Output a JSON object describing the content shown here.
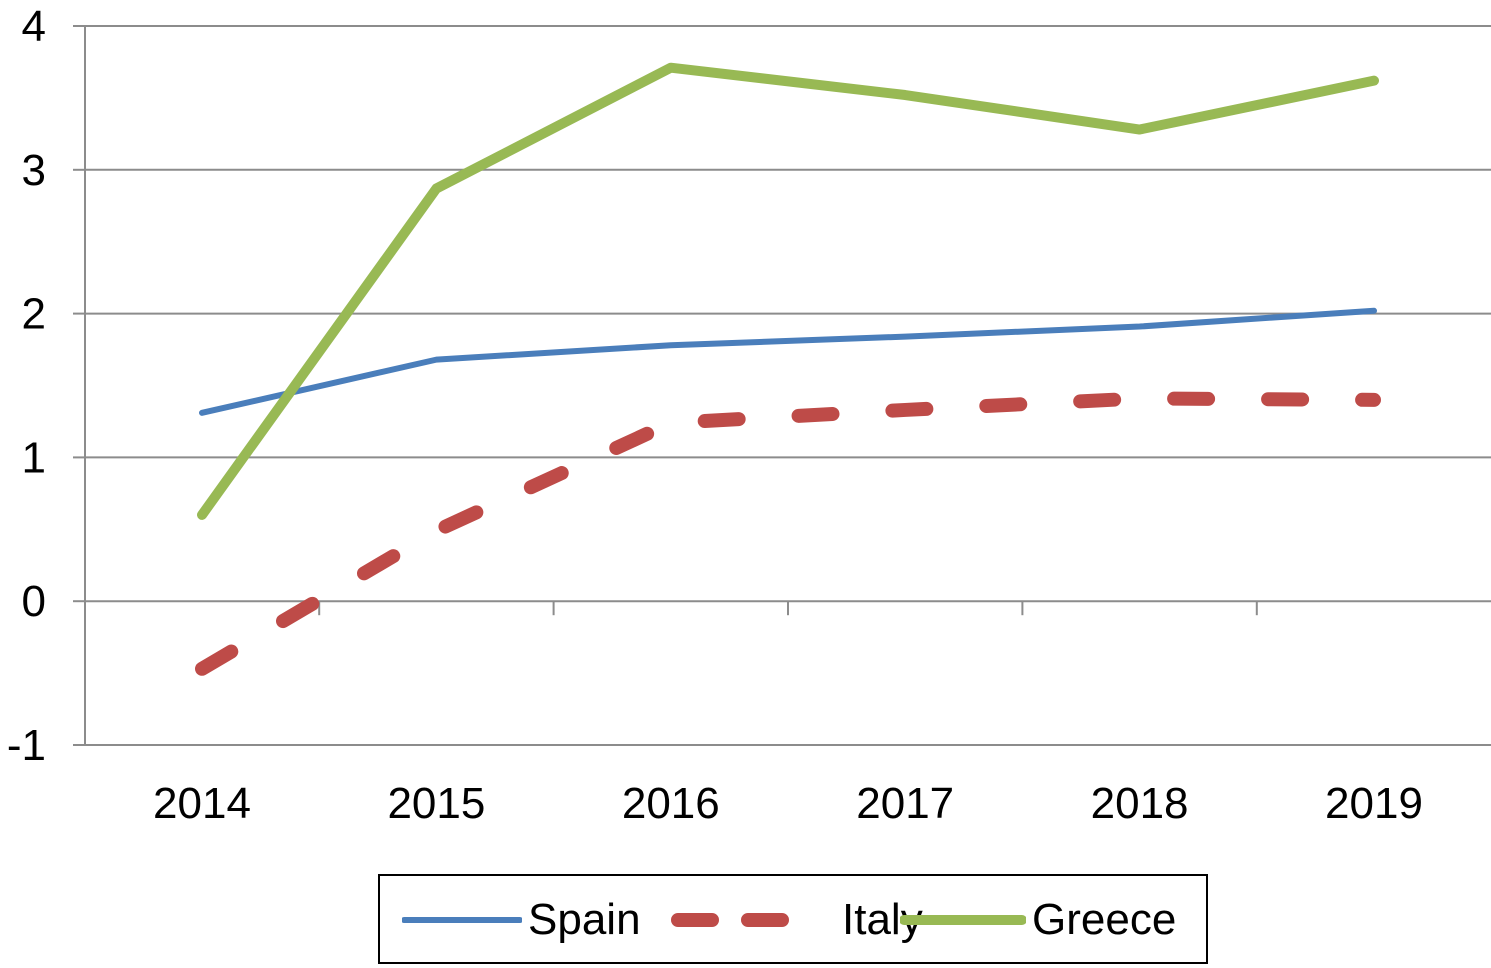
{
  "chart_data": {
    "type": "line",
    "title": "",
    "xlabel": "",
    "ylabel": "",
    "categories": [
      "2014",
      "2015",
      "2016",
      "2017",
      "2018",
      "2019"
    ],
    "ylim": [
      -1,
      4
    ],
    "yticks": [
      "-1",
      "0",
      "1",
      "2",
      "3",
      "4"
    ],
    "grid": true,
    "legend_position": "bottom",
    "series": [
      {
        "name": "Spain",
        "color": "#4a7ebb",
        "style": "solid",
        "values": [
          1.31,
          1.68,
          1.78,
          1.84,
          1.91,
          2.02
        ]
      },
      {
        "name": "Italy",
        "color": "#be4b48",
        "style": "dashed",
        "values": [
          -0.47,
          0.49,
          1.24,
          1.33,
          1.41,
          1.4
        ]
      },
      {
        "name": "Greece",
        "color": "#98b954",
        "style": "solid",
        "values": [
          0.6,
          2.87,
          3.71,
          3.52,
          3.28,
          3.62
        ]
      }
    ]
  }
}
